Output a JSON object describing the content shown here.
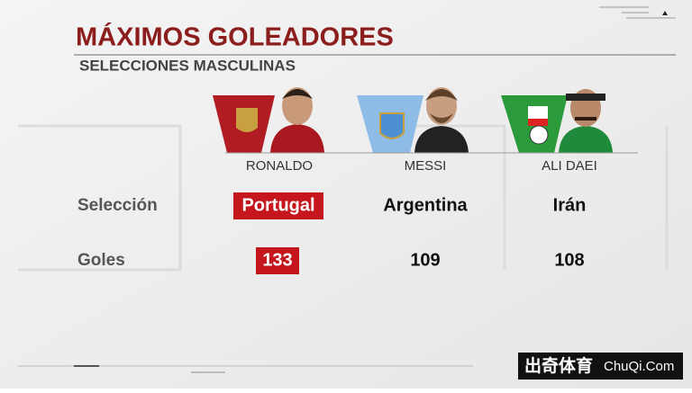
{
  "header": {
    "title": "MÁXIMOS GOLEADORES",
    "subtitle": "SELECCIONES MASCULINAS"
  },
  "table": {
    "players": [
      "RONALDO",
      "MESSI",
      "ALI DAEI"
    ],
    "rows": [
      {
        "label": "Selección",
        "cells": [
          "Portugal",
          "Argentina",
          "Irán"
        ]
      },
      {
        "label": "Goles",
        "cells": [
          "133",
          "109",
          "108"
        ]
      }
    ]
  },
  "watermark": {
    "brand": "出奇体育",
    "site": "ChuQi.Com"
  }
}
